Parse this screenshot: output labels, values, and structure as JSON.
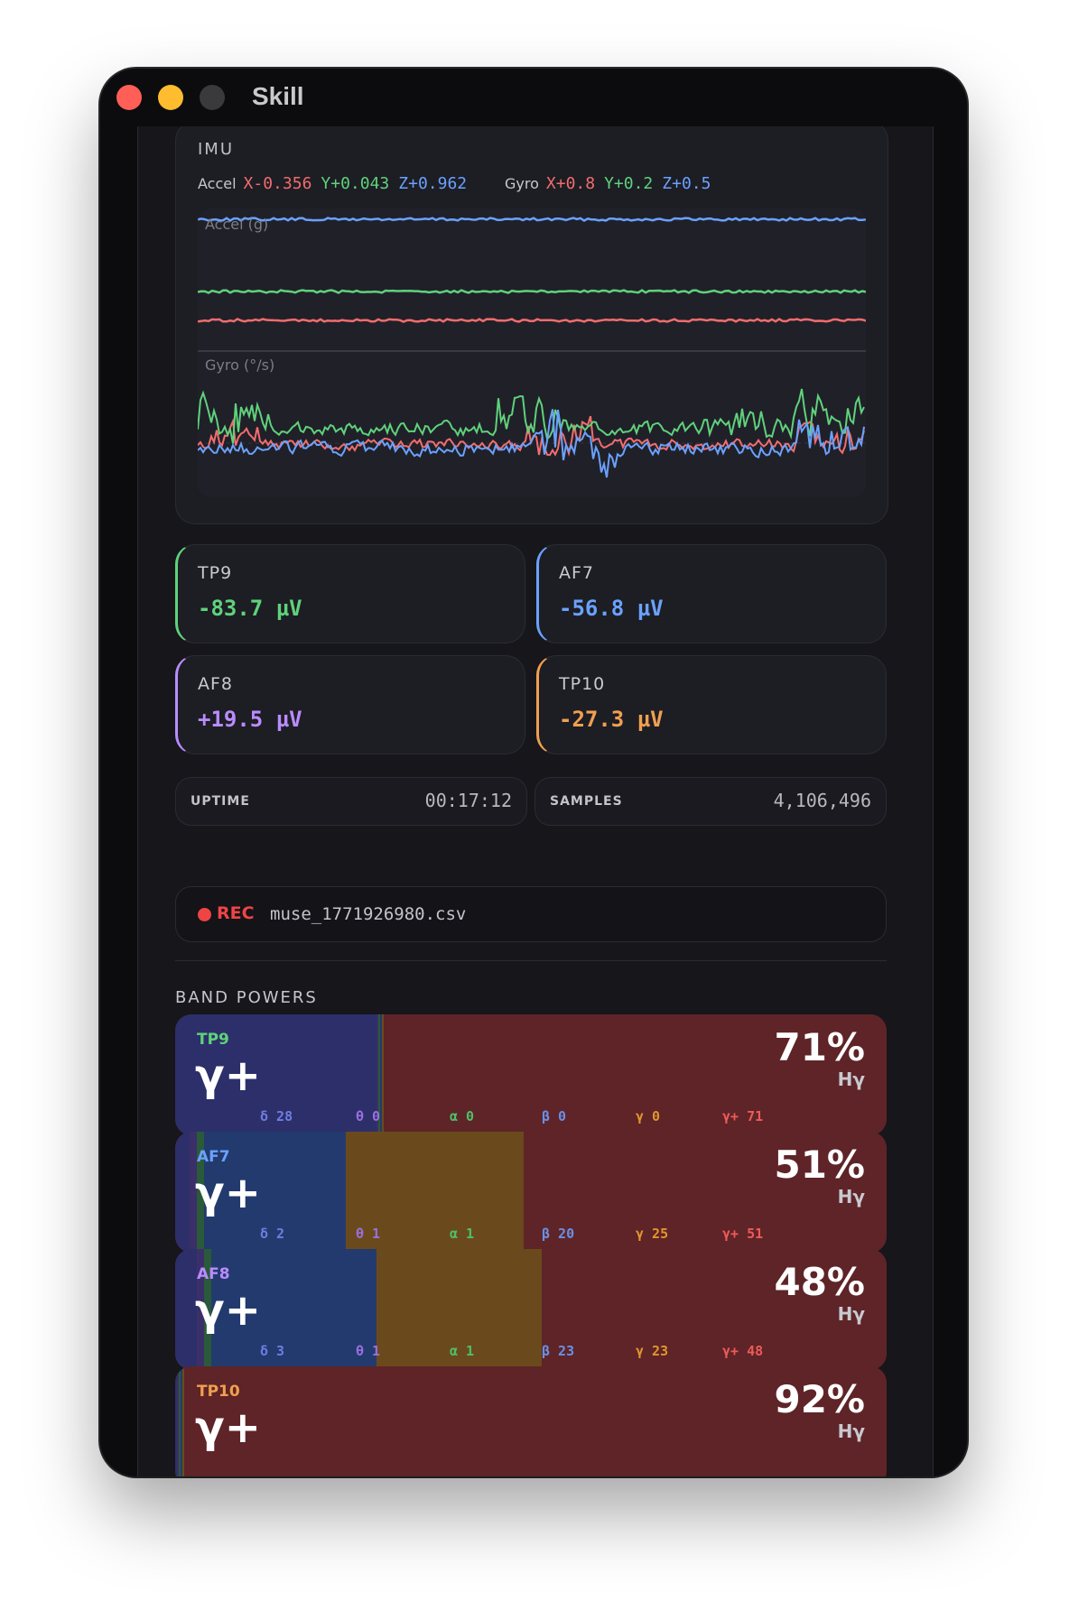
{
  "window": {
    "title": "Skill"
  },
  "imu": {
    "label": "IMU",
    "accel": {
      "label": "Accel",
      "x": "X-0.356",
      "y": "Y+0.043",
      "z": "Z+0.962"
    },
    "gyro": {
      "label": "Gyro",
      "x": "X+0.8",
      "y": "Y+0.2",
      "z": "Z+0.5"
    },
    "accel_plot_label": "Accel (g)",
    "gyro_plot_label": "Gyro (°/s)"
  },
  "electrodes": [
    {
      "name": "TP9",
      "value": "-83.7 µV",
      "color": "#5fd27b"
    },
    {
      "name": "AF7",
      "value": "-56.8 µV",
      "color": "#6aa2ff"
    },
    {
      "name": "AF8",
      "value": "+19.5 µV",
      "color": "#b98cff"
    },
    {
      "name": "TP10",
      "value": "-27.3 µV",
      "color": "#f0a050"
    }
  ],
  "stats": {
    "uptime": {
      "label": "UPTIME",
      "value": "00:17:12"
    },
    "samples": {
      "label": "SAMPLES",
      "value": "4,106,496"
    }
  },
  "recording": {
    "label": "REC",
    "file": "muse_1771926980.csv"
  },
  "band_section": {
    "title": "BAND POWERS"
  },
  "bands": [
    {
      "channel": "TP9",
      "channel_color": "#5fd27b",
      "dominant": "γ+",
      "percent": "71%",
      "sublabel": "Hγ",
      "powers": {
        "delta": 28,
        "theta": 0,
        "alpha": 0,
        "beta": 0,
        "gamma": 0,
        "hgamma": 71
      },
      "labels": {
        "delta": "δ 28",
        "theta": "θ 0",
        "alpha": "α 0",
        "beta": "β 0",
        "gamma": "γ 0",
        "hgamma": "γ+ 71"
      }
    },
    {
      "channel": "AF7",
      "channel_color": "#6aa2ff",
      "dominant": "γ+",
      "percent": "51%",
      "sublabel": "Hγ",
      "powers": {
        "delta": 2,
        "theta": 1,
        "alpha": 1,
        "beta": 20,
        "gamma": 25,
        "hgamma": 51
      },
      "labels": {
        "delta": "δ 2",
        "theta": "θ 1",
        "alpha": "α 1",
        "beta": "β 20",
        "gamma": "γ 25",
        "hgamma": "γ+ 51"
      }
    },
    {
      "channel": "AF8",
      "channel_color": "#b98cff",
      "dominant": "γ+",
      "percent": "48%",
      "sublabel": "Hγ",
      "powers": {
        "delta": 3,
        "theta": 1,
        "alpha": 1,
        "beta": 23,
        "gamma": 23,
        "hgamma": 48
      },
      "labels": {
        "delta": "δ 3",
        "theta": "θ 1",
        "alpha": "α 1",
        "beta": "β 23",
        "gamma": "γ 23",
        "hgamma": "γ+ 48"
      }
    },
    {
      "channel": "TP10",
      "channel_color": "#f0a050",
      "dominant": "γ+",
      "percent": "92%",
      "sublabel": "Hγ",
      "powers": {
        "delta": 0,
        "theta": 0,
        "alpha": 0,
        "beta": 0,
        "gamma": 0,
        "hgamma": 92
      },
      "labels": {
        "delta": "",
        "theta": "",
        "alpha": "",
        "beta": "",
        "gamma": "",
        "hgamma": ""
      }
    }
  ],
  "colors": {
    "delta": "#2d2f6a",
    "theta": "#3b2f6a",
    "alpha": "#2a5a3a",
    "beta": "#233a6e",
    "gamma": "#6a4a1c",
    "hgamma": "#5e2427",
    "label_delta": "#6f7de0",
    "label_theta": "#9a6fe0",
    "label_alpha": "#4fbf6a",
    "label_beta": "#6a8fe6",
    "label_gamma": "#e0962e",
    "label_hgamma": "#ee5a5a"
  }
}
